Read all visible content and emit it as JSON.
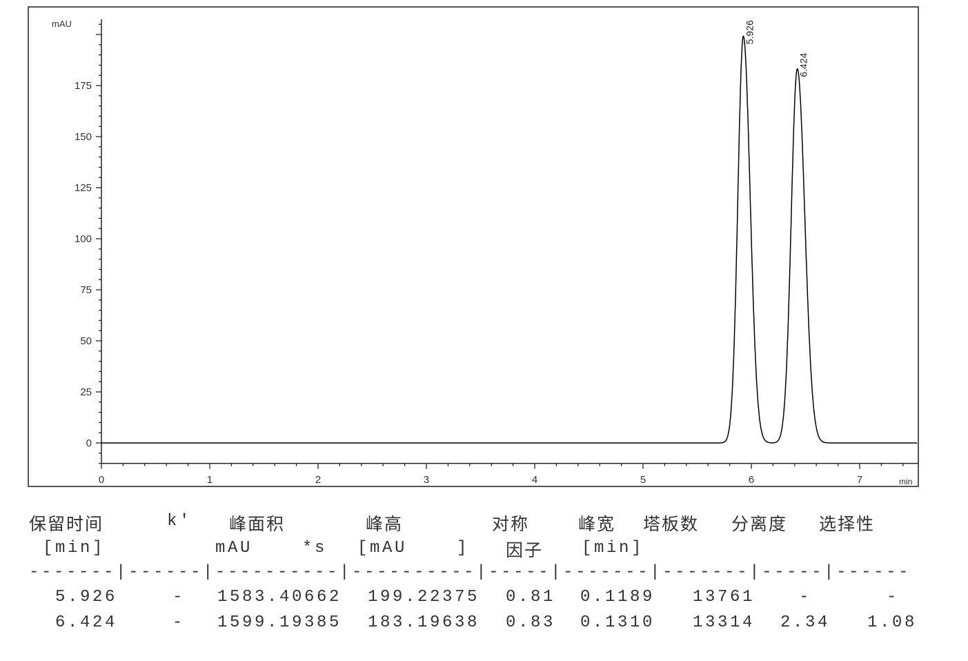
{
  "chart_data": {
    "type": "line",
    "ylabel": "mAU",
    "xlabel": "min",
    "xlim": [
      0,
      7.53
    ],
    "ylim": [
      -10,
      208
    ],
    "x_ticks": [
      0,
      1,
      2,
      3,
      4,
      5,
      6,
      7
    ],
    "y_ticks": [
      0,
      25,
      50,
      75,
      100,
      125,
      150,
      175
    ],
    "grid": false,
    "line_color": "#000000",
    "peaks": [
      {
        "label": "5.926",
        "rt": 5.926,
        "height": 199.22375,
        "width": 0.1189
      },
      {
        "label": "6.424",
        "rt": 6.424,
        "height": 183.19638,
        "width": 0.131
      }
    ]
  },
  "table": {
    "headers1": [
      "保留时间",
      "k'",
      "峰面积",
      "峰高",
      "对称",
      "峰宽",
      "塔板数",
      "分离度",
      "选择性"
    ],
    "headers2": [
      "[min]",
      "mAU    *s",
      "[mAU    ]",
      "因子",
      "[min]"
    ],
    "divider": "-------|------|----------|----------|-----|-------|-------|-----|------",
    "rows": [
      [
        "5.926",
        "-",
        "1583.40662",
        "199.22375",
        "0.81",
        "0.1189",
        "13761",
        "-",
        "-"
      ],
      [
        "6.424",
        "-",
        "1599.19385",
        "183.19638",
        "0.83",
        "0.1310",
        "13314",
        "2.34",
        "1.08"
      ]
    ]
  }
}
